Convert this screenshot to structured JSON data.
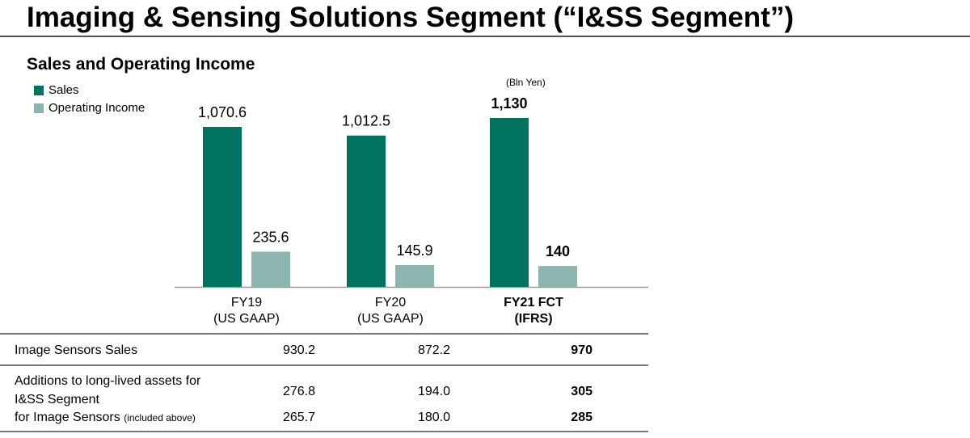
{
  "title": "Imaging & Sensing Solutions Segment (“I&SS Segment”)",
  "subtitle": "Sales and Operating Income",
  "unit": "(Bln Yen)",
  "colors": {
    "sales": "#00735f",
    "operating_income": "#8db5b0"
  },
  "chart_data": {
    "type": "bar",
    "title": "Sales and Operating Income",
    "categories": [
      [
        "FY19",
        "(US GAAP)"
      ],
      [
        "FY20",
        "(US GAAP)"
      ],
      [
        "FY21 FCT",
        "(IFRS)"
      ]
    ],
    "labels": {
      "sales": [
        "1,070.6",
        "1,012.5",
        "1,130"
      ],
      "operating_income": [
        "235.6",
        "145.9",
        "140"
      ]
    },
    "series": [
      {
        "name": "Sales",
        "values": [
          1070.6,
          1012.5,
          1130
        ]
      },
      {
        "name": "Operating Income",
        "values": [
          235.6,
          145.9,
          140
        ]
      }
    ],
    "legend": "top-left",
    "grid": false,
    "ylim": [
      0,
      1130
    ]
  },
  "table": {
    "rows": [
      {
        "label": "Image Sensors Sales",
        "values": [
          "930.2",
          "872.2",
          "970"
        ]
      },
      {
        "label": "Additions to long-lived assets for",
        "label2": "I&SS Segment",
        "values": [
          "276.8",
          "194.0",
          "305"
        ]
      },
      {
        "label": "for Image Sensors",
        "note": "(included above)",
        "values": [
          "265.7",
          "180.0",
          "285"
        ]
      }
    ]
  }
}
